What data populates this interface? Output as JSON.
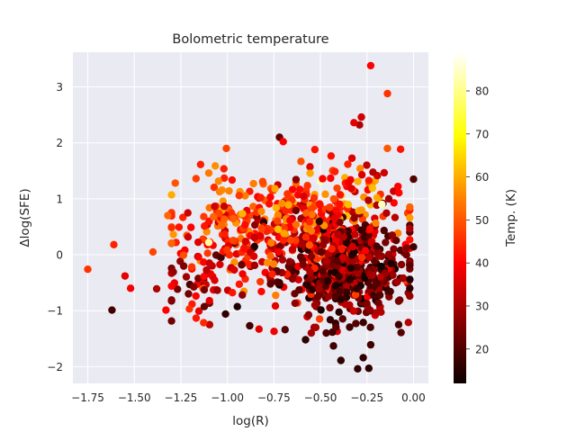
{
  "chart_data": {
    "type": "scatter",
    "title": "Bolometric temperature",
    "xlabel": "log(R)",
    "ylabel": "Δlog(SFE)",
    "xlim": [
      -1.83,
      0.08
    ],
    "ylim": [
      -2.3,
      3.62
    ],
    "x_ticks": [
      -1.75,
      -1.5,
      -1.25,
      -1.0,
      -0.75,
      -0.5,
      -0.25,
      0.0
    ],
    "x_tick_labels": [
      "−1.75",
      "−1.50",
      "−1.25",
      "−1.00",
      "−0.75",
      "−0.50",
      "−0.25",
      "0.00"
    ],
    "y_ticks": [
      -2,
      -1,
      0,
      1,
      2,
      3
    ],
    "y_tick_labels": [
      "−2",
      "−1",
      "0",
      "1",
      "2",
      "3"
    ],
    "grid": true,
    "background": "#eaeaf2",
    "colormap": "hot",
    "colorbar": {
      "label": "Temp. (K)",
      "range": [
        12,
        89
      ],
      "ticks": [
        20,
        30,
        40,
        50,
        60,
        70,
        80
      ],
      "tick_labels": [
        "20",
        "30",
        "40",
        "50",
        "60",
        "70",
        "80"
      ]
    },
    "highlight_points": [
      {
        "x": -1.75,
        "y": -0.26,
        "c": 46
      },
      {
        "x": -1.61,
        "y": 0.18,
        "c": 44
      },
      {
        "x": -1.62,
        "y": -0.99,
        "c": 18
      },
      {
        "x": -1.55,
        "y": -0.38,
        "c": 36
      },
      {
        "x": -1.52,
        "y": -0.6,
        "c": 38
      },
      {
        "x": -1.4,
        "y": 0.05,
        "c": 48
      },
      {
        "x": -1.38,
        "y": -0.61,
        "c": 30
      },
      {
        "x": -1.33,
        "y": -0.99,
        "c": 40
      },
      {
        "x": -1.32,
        "y": 0.7,
        "c": 52
      },
      {
        "x": -1.28,
        "y": 1.28,
        "c": 50
      },
      {
        "x": -1.1,
        "y": 1.46,
        "c": 54
      },
      {
        "x": -1.1,
        "y": 0.22,
        "c": 82
      },
      {
        "x": -0.72,
        "y": 2.1,
        "c": 22
      },
      {
        "x": -0.7,
        "y": 2.02,
        "c": 38
      },
      {
        "x": -0.53,
        "y": 1.88,
        "c": 42
      },
      {
        "x": -0.5,
        "y": 1.31,
        "c": 84
      },
      {
        "x": -0.42,
        "y": 0.8,
        "c": 76
      },
      {
        "x": -0.32,
        "y": 2.36,
        "c": 36
      },
      {
        "x": -0.28,
        "y": 2.46,
        "c": 34
      },
      {
        "x": -0.29,
        "y": 2.32,
        "c": 30
      },
      {
        "x": -0.23,
        "y": 3.38,
        "c": 40
      },
      {
        "x": -0.14,
        "y": 2.88,
        "c": 46
      },
      {
        "x": -0.17,
        "y": 0.9,
        "c": 84
      },
      {
        "x": -0.02,
        "y": 0.66,
        "c": 58
      },
      {
        "x": 0.0,
        "y": 1.35,
        "c": 20
      },
      {
        "x": -0.39,
        "y": -1.89,
        "c": 16
      },
      {
        "x": -0.3,
        "y": -2.04,
        "c": 16
      },
      {
        "x": -0.24,
        "y": -2.03,
        "c": 16
      },
      {
        "x": -0.27,
        "y": -1.84,
        "c": 16
      },
      {
        "x": -0.23,
        "y": -1.61,
        "c": 18
      },
      {
        "x": -0.43,
        "y": -1.63,
        "c": 18
      },
      {
        "x": -0.58,
        "y": -1.52,
        "c": 16
      },
      {
        "x": -0.69,
        "y": -1.34,
        "c": 20
      },
      {
        "x": -0.83,
        "y": -1.33,
        "c": 36
      },
      {
        "x": -0.88,
        "y": -1.27,
        "c": 18
      },
      {
        "x": -1.01,
        "y": -1.06,
        "c": 16
      },
      {
        "x": -0.41,
        "y": -1.37,
        "c": 34
      },
      {
        "x": -0.08,
        "y": -1.25,
        "c": 18
      },
      {
        "x": -0.08,
        "y": -0.83,
        "c": 24
      },
      {
        "x": -0.02,
        "y": -0.16,
        "c": 30
      },
      {
        "x": 0.0,
        "y": 0.14,
        "c": 18
      }
    ],
    "cluster_points": [
      {
        "n": 420,
        "cx": -0.37,
        "cy": -0.28,
        "sx": 0.17,
        "sy": 0.42,
        "cmin": 13,
        "cmax": 32
      },
      {
        "n": 300,
        "cx": -0.5,
        "cy": 0.25,
        "sx": 0.22,
        "sy": 0.48,
        "cmin": 25,
        "cmax": 48
      },
      {
        "n": 150,
        "cx": -0.62,
        "cy": 0.75,
        "sx": 0.25,
        "sy": 0.35,
        "cmin": 40,
        "cmax": 62
      },
      {
        "n": 120,
        "cx": -0.95,
        "cy": 0.35,
        "sx": 0.2,
        "sy": 0.45,
        "cmin": 32,
        "cmax": 58
      },
      {
        "n": 60,
        "cx": -1.12,
        "cy": -0.35,
        "sx": 0.12,
        "sy": 0.35,
        "cmin": 18,
        "cmax": 45
      },
      {
        "n": 30,
        "cx": -0.3,
        "cy": 1.4,
        "sx": 0.12,
        "sy": 0.25,
        "cmin": 30,
        "cmax": 60
      }
    ]
  }
}
